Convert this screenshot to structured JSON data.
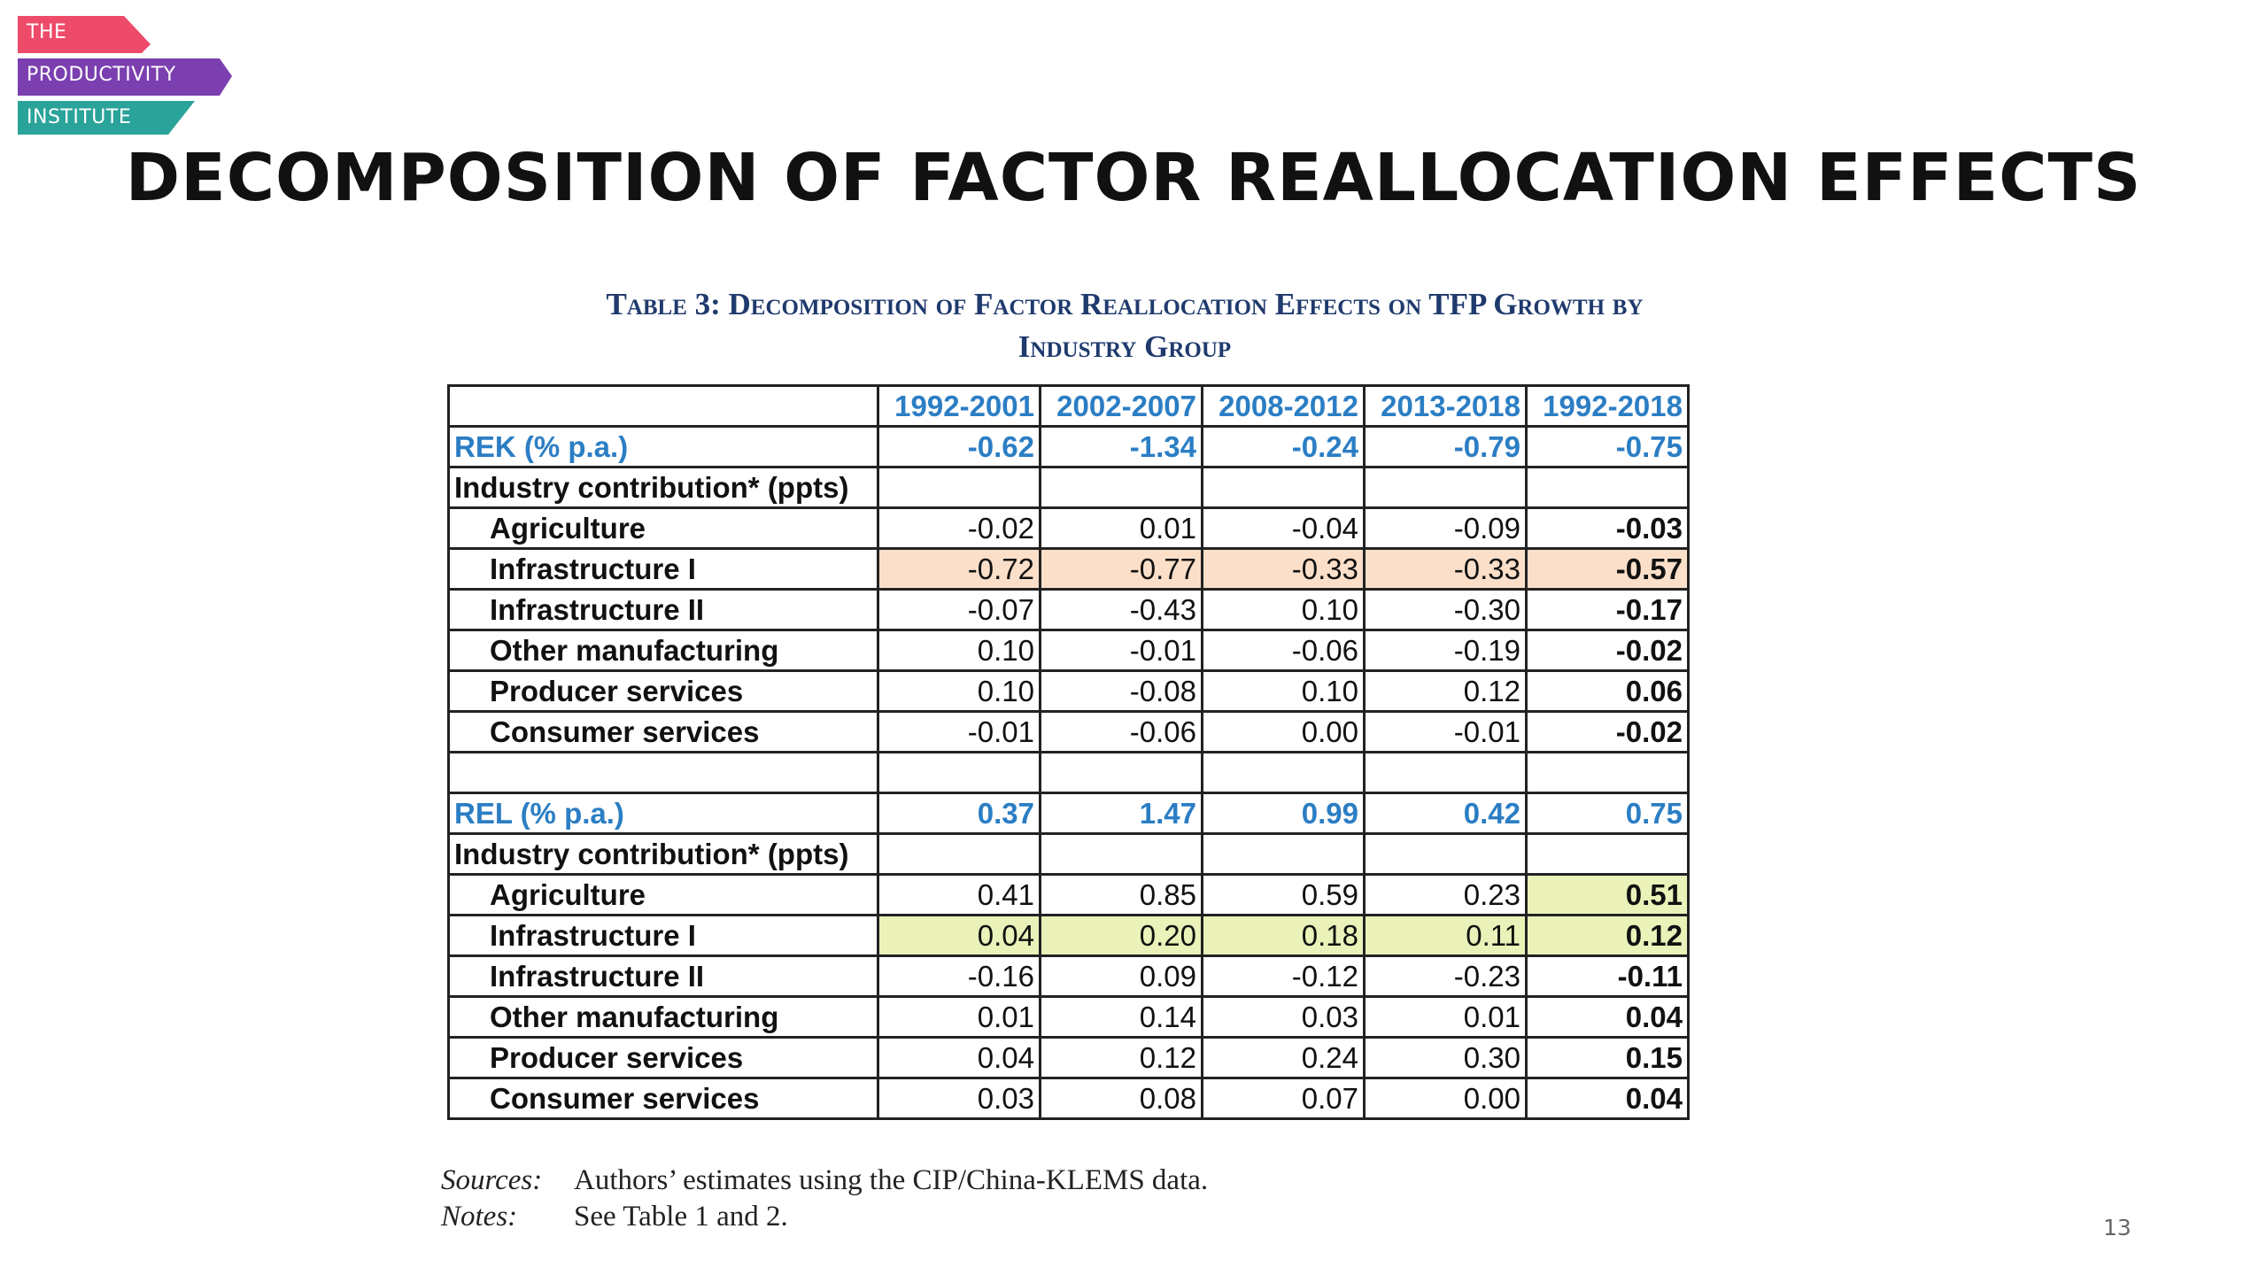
{
  "logo": {
    "lines": [
      "THE",
      "PRODUCTIVITY",
      "INSTITUTE"
    ],
    "colors": {
      "the": "#ee4a6a",
      "productivity": "#7b3fb0",
      "institute": "#2aa39a"
    }
  },
  "slide": {
    "title": "DECOMPOSITION OF FACTOR REALLOCATION EFFECTS",
    "page_number": "13"
  },
  "table": {
    "caption_line1": "Table 3: Decomposition of Factor Reallocation Effects on TFP Growth by",
    "caption_line2": "Industry Group",
    "columns": [
      "1992-2001",
      "2002-2007",
      "2008-2012",
      "2013-2018",
      "1992-2018"
    ],
    "rek": {
      "label": "REK (% p.a.)",
      "values": [
        "-0.62",
        "-1.34",
        "-0.24",
        "-0.79",
        "-0.75"
      ],
      "contribution_label": "Industry contribution* (ppts)",
      "rows": [
        {
          "label": "Agriculture",
          "values": [
            "-0.02",
            "0.01",
            "-0.04",
            "-0.09",
            "-0.03"
          ]
        },
        {
          "label": "Infrastructure I",
          "values": [
            "-0.72",
            "-0.77",
            "-0.33",
            "-0.33",
            "-0.57"
          ]
        },
        {
          "label": "Infrastructure II",
          "values": [
            "-0.07",
            "-0.43",
            "0.10",
            "-0.30",
            "-0.17"
          ]
        },
        {
          "label": "Other manufacturing",
          "values": [
            "0.10",
            "-0.01",
            "-0.06",
            "-0.19",
            "-0.02"
          ]
        },
        {
          "label": "Producer services",
          "values": [
            "0.10",
            "-0.08",
            "0.10",
            "0.12",
            "0.06"
          ]
        },
        {
          "label": "Consumer services",
          "values": [
            "-0.01",
            "-0.06",
            "0.00",
            "-0.01",
            "-0.02"
          ]
        }
      ]
    },
    "rel": {
      "label": "REL (% p.a.)",
      "values": [
        "0.37",
        "1.47",
        "0.99",
        "0.42",
        "0.75"
      ],
      "contribution_label": "Industry contribution* (ppts)",
      "rows": [
        {
          "label": "Agriculture",
          "values": [
            "0.41",
            "0.85",
            "0.59",
            "0.23",
            "0.51"
          ]
        },
        {
          "label": "Infrastructure I",
          "values": [
            "0.04",
            "0.20",
            "0.18",
            "0.11",
            "0.12"
          ]
        },
        {
          "label": "Infrastructure II",
          "values": [
            "-0.16",
            "0.09",
            "-0.12",
            "-0.23",
            "-0.11"
          ]
        },
        {
          "label": "Other manufacturing",
          "values": [
            "0.01",
            "0.14",
            "0.03",
            "0.01",
            "0.04"
          ]
        },
        {
          "label": "Producer services",
          "values": [
            "0.04",
            "0.12",
            "0.24",
            "0.30",
            "0.15"
          ]
        },
        {
          "label": "Consumer services",
          "values": [
            "0.03",
            "0.08",
            "0.07",
            "0.00",
            "0.04"
          ]
        }
      ]
    },
    "highlight_colors": {
      "orange": "#fbdfc9",
      "green": "#eaf1b9"
    }
  },
  "notes": {
    "sources_key": "Sources:",
    "sources_text": "Authors’ estimates using the CIP/China-KLEMS data.",
    "notes_key": "Notes:",
    "notes_text": "See Table 1 and 2."
  }
}
